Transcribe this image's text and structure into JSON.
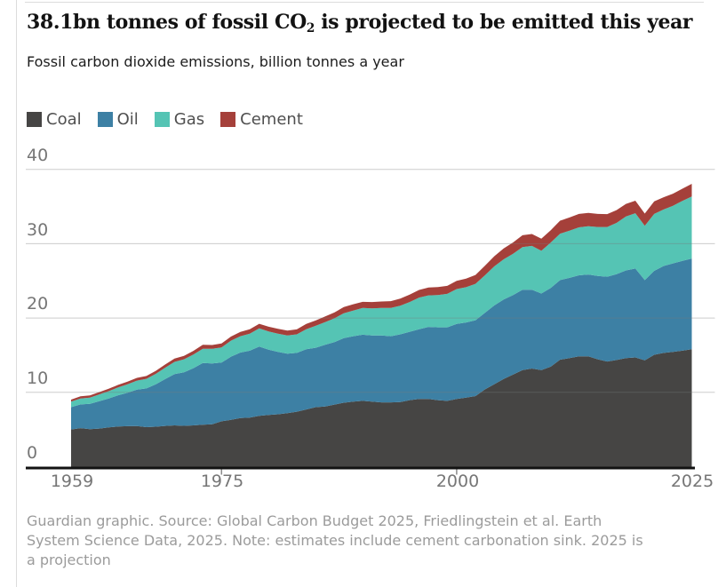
{
  "header": {
    "title_prefix": "38.1bn tonnes of fossil CO",
    "title_subscript": "2",
    "title_suffix": " is projected to be emitted this year",
    "subtitle": "Fossil carbon dioxide emissions, billion tonnes a year"
  },
  "footer": {
    "lines": [
      "Guardian graphic. Source: Global Carbon Budget 2025, Friedlingstein et al. Earth",
      "System Science Data, 2025. Note: estimates include cement carbonation sink. 2025 is",
      "a projection"
    ]
  },
  "chart_data": {
    "type": "area",
    "stacked": true,
    "title": "38.1bn tonnes of fossil CO2 is projected to be emitted this year",
    "subtitle": "Fossil carbon dioxide emissions, billion tonnes a year",
    "units": "billion tonnes CO2 per year",
    "xlim": [
      1959,
      2025
    ],
    "ylim": [
      0,
      40
    ],
    "grid": "horizontal",
    "legend_position": "top",
    "x_ticks": [
      "1959",
      "1975",
      "2000",
      "2025"
    ],
    "x_tick_marks": [
      1975,
      2000
    ],
    "y_ticks": [
      "40",
      "30",
      "20",
      "10",
      "0"
    ],
    "y_gridlines": [
      10,
      20,
      30,
      40
    ],
    "x": [
      1959,
      1960,
      1961,
      1962,
      1963,
      1964,
      1965,
      1966,
      1967,
      1968,
      1969,
      1970,
      1971,
      1972,
      1973,
      1974,
      1975,
      1976,
      1977,
      1978,
      1979,
      1980,
      1981,
      1982,
      1983,
      1984,
      1985,
      1986,
      1987,
      1988,
      1989,
      1990,
      1991,
      1992,
      1993,
      1994,
      1995,
      1996,
      1997,
      1998,
      1999,
      2000,
      2001,
      2002,
      2003,
      2004,
      2005,
      2006,
      2007,
      2008,
      2009,
      2010,
      2011,
      2012,
      2013,
      2014,
      2015,
      2016,
      2017,
      2018,
      2019,
      2020,
      2021,
      2022,
      2023,
      2024,
      2025
    ],
    "series": [
      {
        "name": "Coal",
        "color": "#464544",
        "values": [
          5.0,
          5.18,
          5.05,
          5.12,
          5.28,
          5.4,
          5.45,
          5.46,
          5.32,
          5.38,
          5.48,
          5.55,
          5.5,
          5.55,
          5.65,
          5.7,
          6.1,
          6.3,
          6.55,
          6.6,
          6.85,
          6.95,
          7.05,
          7.2,
          7.4,
          7.7,
          8.0,
          8.1,
          8.35,
          8.6,
          8.75,
          8.85,
          8.75,
          8.65,
          8.65,
          8.7,
          8.95,
          9.1,
          9.1,
          8.95,
          8.85,
          9.1,
          9.3,
          9.5,
          10.4,
          11.1,
          11.8,
          12.4,
          13.0,
          13.2,
          13.0,
          13.45,
          14.4,
          14.6,
          14.85,
          14.85,
          14.45,
          14.15,
          14.35,
          14.6,
          14.7,
          14.3,
          15.05,
          15.3,
          15.45,
          15.6,
          15.8
        ]
      },
      {
        "name": "Oil",
        "color": "#3d80a4",
        "values": [
          3.0,
          3.2,
          3.4,
          3.7,
          3.9,
          4.2,
          4.5,
          4.9,
          5.2,
          5.7,
          6.3,
          6.9,
          7.2,
          7.7,
          8.3,
          8.2,
          7.9,
          8.5,
          8.8,
          9.0,
          9.3,
          8.8,
          8.4,
          8.0,
          7.9,
          8.1,
          8.0,
          8.3,
          8.4,
          8.7,
          8.8,
          8.9,
          8.9,
          9.0,
          8.9,
          9.1,
          9.2,
          9.4,
          9.7,
          9.8,
          9.9,
          10.1,
          10.1,
          10.2,
          10.3,
          10.6,
          10.7,
          10.7,
          10.8,
          10.6,
          10.3,
          10.6,
          10.7,
          10.8,
          10.9,
          11.0,
          11.2,
          11.4,
          11.55,
          11.8,
          11.95,
          10.8,
          11.3,
          11.7,
          11.9,
          12.1,
          12.2
        ]
      },
      {
        "name": "Gas",
        "color": "#55c4b4",
        "values": [
          0.75,
          0.8,
          0.85,
          0.91,
          0.98,
          1.06,
          1.13,
          1.22,
          1.3,
          1.41,
          1.53,
          1.65,
          1.74,
          1.83,
          1.92,
          1.95,
          2.05,
          2.15,
          2.2,
          2.3,
          2.45,
          2.45,
          2.45,
          2.45,
          2.5,
          2.7,
          2.95,
          3.05,
          3.2,
          3.35,
          3.45,
          3.6,
          3.65,
          3.7,
          3.8,
          3.85,
          4.0,
          4.25,
          4.25,
          4.35,
          4.5,
          4.7,
          4.75,
          4.9,
          5.05,
          5.25,
          5.4,
          5.55,
          5.75,
          5.9,
          5.75,
          6.1,
          6.25,
          6.35,
          6.45,
          6.5,
          6.6,
          6.7,
          6.9,
          7.25,
          7.45,
          7.3,
          7.65,
          7.6,
          7.75,
          8.05,
          8.35
        ]
      },
      {
        "name": "Cement",
        "color": "#a5403a",
        "values": [
          0.27,
          0.28,
          0.29,
          0.3,
          0.32,
          0.34,
          0.36,
          0.37,
          0.38,
          0.4,
          0.43,
          0.45,
          0.47,
          0.5,
          0.53,
          0.52,
          0.52,
          0.55,
          0.57,
          0.6,
          0.62,
          0.63,
          0.64,
          0.65,
          0.67,
          0.7,
          0.72,
          0.75,
          0.79,
          0.83,
          0.85,
          0.83,
          0.85,
          0.87,
          0.92,
          0.96,
          1.0,
          1.03,
          1.05,
          1.06,
          1.08,
          1.1,
          1.14,
          1.2,
          1.28,
          1.37,
          1.45,
          1.52,
          1.58,
          1.6,
          1.62,
          1.67,
          1.75,
          1.78,
          1.8,
          1.8,
          1.75,
          1.73,
          1.72,
          1.7,
          1.68,
          1.65,
          1.7,
          1.65,
          1.63,
          1.65,
          1.7
        ]
      }
    ]
  }
}
